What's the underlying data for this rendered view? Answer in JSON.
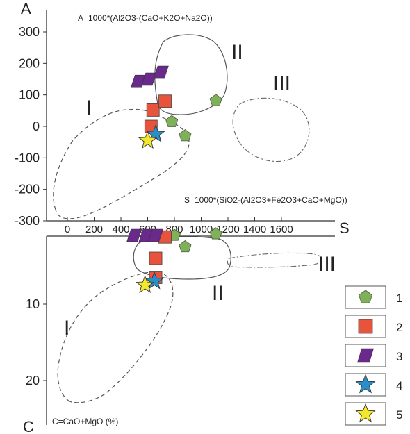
{
  "chart_data": [
    {
      "type": "scatter",
      "panel": "A-S",
      "y_axis_letter": "A",
      "x_axis_letter": "S",
      "title_y": "A=1000*(Al2O3-(CaO+K2O+Na2O))",
      "title_x": "S=1000*(SiO2-(Al2O3+Fe2O3+CaO+MgO))",
      "xlim": [
        -100,
        1700
      ],
      "ylim": [
        -300,
        330
      ],
      "x_ticks": [
        "0",
        "200",
        "400",
        "600",
        "800",
        "1000",
        "1200",
        "1400",
        "1600"
      ],
      "y_ticks": [
        "300",
        "200",
        "100",
        "0",
        "-100",
        "-200",
        "-300"
      ],
      "field_labels": [
        "I",
        "II",
        "III"
      ],
      "series": [
        {
          "name": "1",
          "marker": "pentagon",
          "color": "#7fb05a",
          "points": [
            [
              780,
              15
            ],
            [
              880,
              -30
            ],
            [
              1110,
              82
            ]
          ]
        },
        {
          "name": "2",
          "marker": "square",
          "color": "#e8533c",
          "points": [
            [
              640,
              52
            ],
            [
              730,
              80
            ],
            [
              625,
              0
            ]
          ]
        },
        {
          "name": "3",
          "marker": "parallelogram",
          "color": "#6a2a8c",
          "points": [
            [
              530,
              143
            ],
            [
              610,
              150
            ],
            [
              700,
              172
            ]
          ]
        },
        {
          "name": "4",
          "marker": "star",
          "color": "#2a8fc8",
          "points": [
            [
              660,
              -25
            ]
          ]
        },
        {
          "name": "5",
          "marker": "star",
          "color": "#f5e82a",
          "points": [
            [
              600,
              -45
            ]
          ]
        }
      ]
    },
    {
      "type": "scatter",
      "panel": "C-S",
      "y_axis_letter": "C",
      "title_y": "C=CaO+MgO (%)",
      "xlim": [
        -100,
        1700
      ],
      "ylim": [
        24,
        0
      ],
      "y_ticks": [
        "10",
        "20"
      ],
      "field_labels": [
        "I",
        "II",
        "III"
      ],
      "series": [
        {
          "name": "1",
          "marker": "pentagon",
          "color": "#7fb05a",
          "points": [
            [
              800,
              1
            ],
            [
              880,
              2.5
            ],
            [
              1110,
              0.8
            ]
          ]
        },
        {
          "name": "2",
          "marker": "square",
          "color": "#e8533c",
          "points": [
            [
              730,
              1.2
            ],
            [
              660,
              4
            ],
            [
              660,
              6.5
            ]
          ]
        },
        {
          "name": "3",
          "marker": "parallelogram",
          "color": "#6a2a8c",
          "points": [
            [
              500,
              1
            ],
            [
              590,
              1
            ],
            [
              660,
              1
            ]
          ]
        },
        {
          "name": "4",
          "marker": "star",
          "color": "#2a8fc8",
          "points": [
            [
              650,
              7
            ]
          ]
        },
        {
          "name": "5",
          "marker": "star",
          "color": "#f5e82a",
          "points": [
            [
              580,
              7.5
            ]
          ]
        }
      ]
    }
  ],
  "legend": [
    {
      "label": "1",
      "marker": "pentagon",
      "color": "#7fb05a"
    },
    {
      "label": "2",
      "marker": "square",
      "color": "#e8533c"
    },
    {
      "label": "3",
      "marker": "parallelogram",
      "color": "#6a2a8c"
    },
    {
      "label": "4",
      "marker": "star",
      "color": "#2a8fc8"
    },
    {
      "label": "5",
      "marker": "star",
      "color": "#f5e82a"
    }
  ]
}
